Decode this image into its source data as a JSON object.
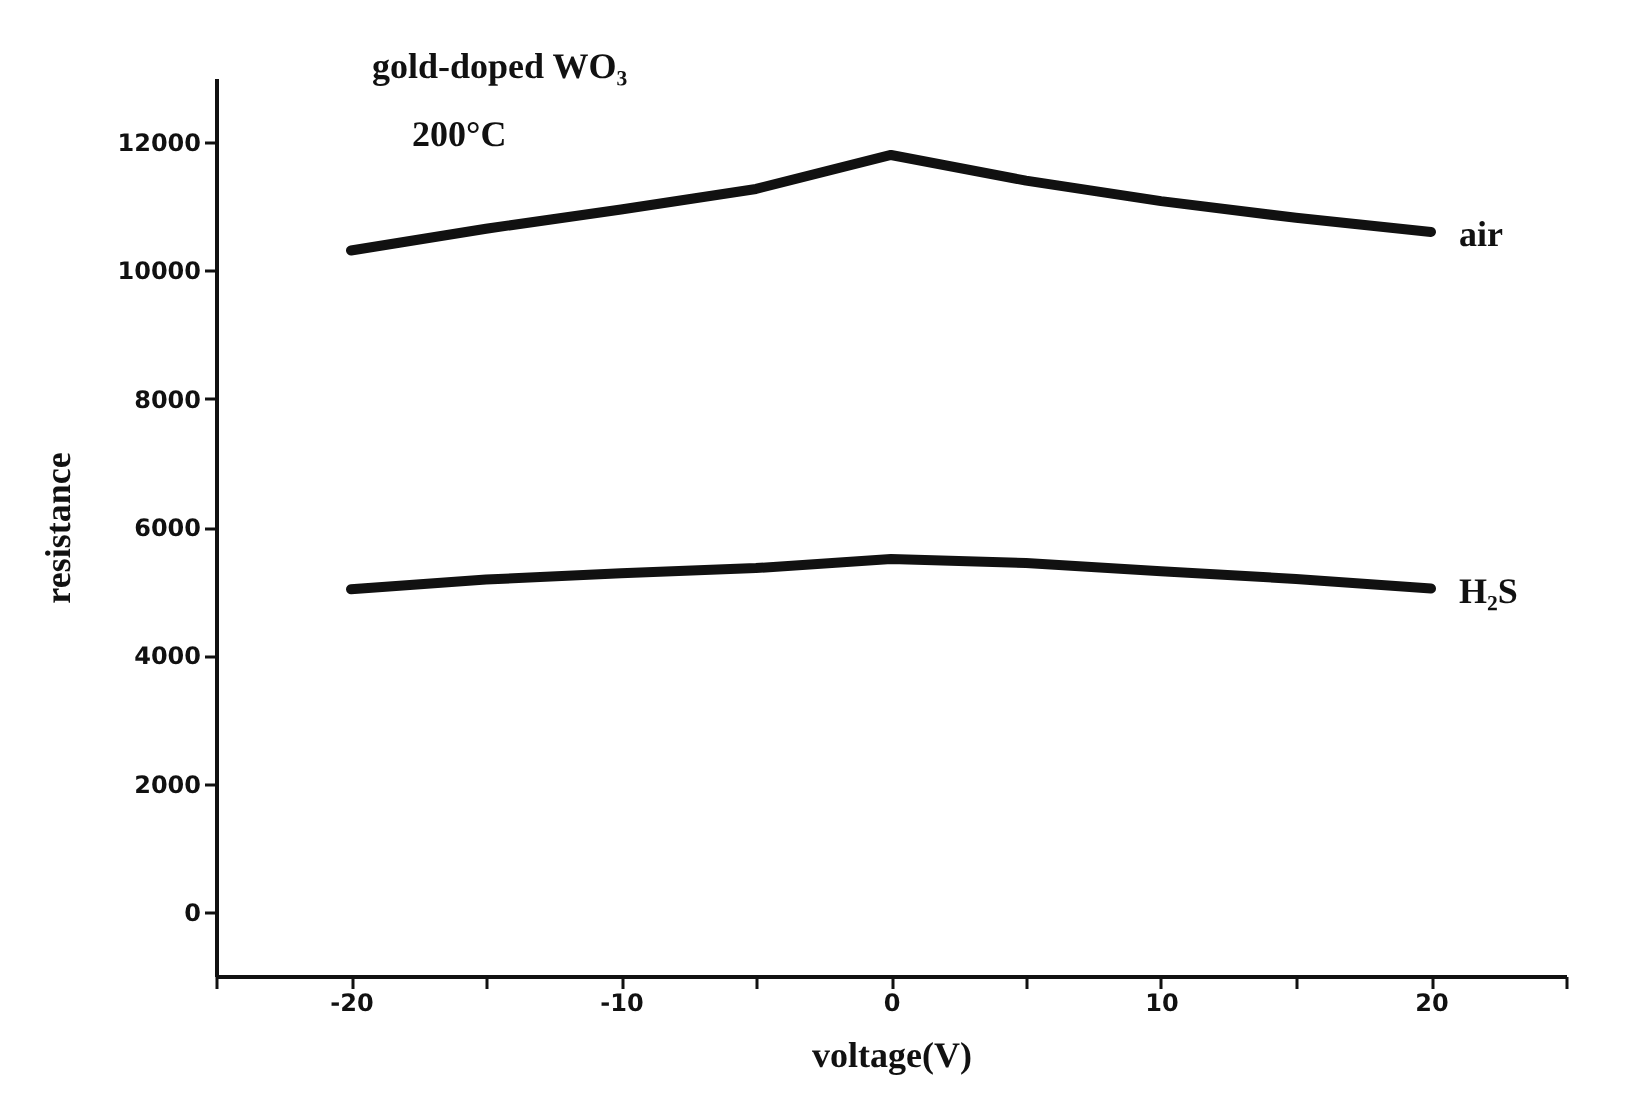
{
  "chart_data": {
    "type": "line",
    "xlabel": "voltage(V)",
    "ylabel": "resistance",
    "annotations": [
      "gold-doped WO₃",
      "200°C"
    ],
    "x": [
      -20,
      -15,
      -10,
      -5,
      0,
      5,
      10,
      15,
      20
    ],
    "series": [
      {
        "name": "air",
        "color": "#111111",
        "values": [
          10310,
          10650,
          10950,
          11270,
          11800,
          11400,
          11080,
          10820,
          10600
        ]
      },
      {
        "name": "H₂S",
        "color": "#111111",
        "values": [
          5030,
          5180,
          5280,
          5360,
          5500,
          5440,
          5310,
          5190,
          5040
        ]
      }
    ],
    "xlim": [
      -25,
      25
    ],
    "xticks": [
      {
        "value": -25,
        "label": null
      },
      -20,
      {
        "value": -15,
        "label": null
      },
      -10,
      {
        "value": -5,
        "label": null
      },
      0,
      {
        "value": 5,
        "label": null
      },
      10,
      {
        "value": 15,
        "label": null
      },
      20,
      {
        "value": 25,
        "label": null
      }
    ],
    "ylim": [
      -1000,
      13000
    ],
    "yticks": [
      0,
      2000,
      4000,
      6000,
      8000,
      10000,
      12000
    ],
    "grid": false,
    "legend": false,
    "marker": "none",
    "line_style": "solid"
  }
}
